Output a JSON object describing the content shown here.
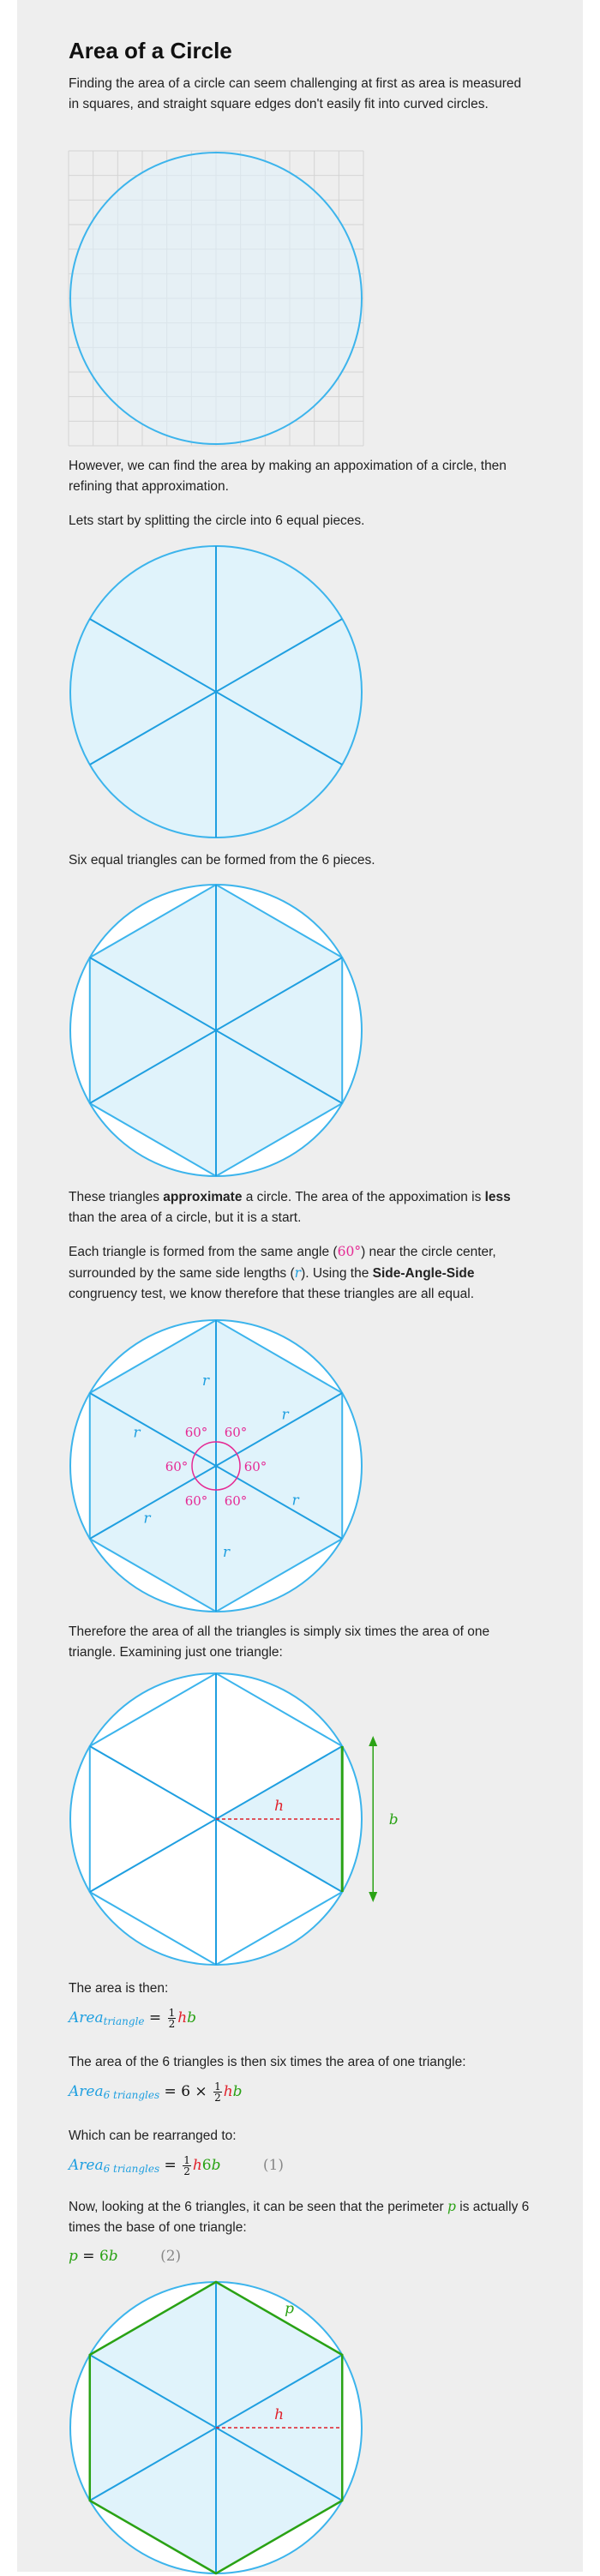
{
  "title": "Area of a Circle",
  "paragraphs": {
    "p1": "Finding the area of a circle can seem challenging at first as area is measured in squares, and straight square edges don't easily fit into curved circles.",
    "p2": "However, we can find the area by making an appoximation of a circle, then refining that approximation.",
    "p3": "Lets start by splitting the circle into 6 equal pieces.",
    "p4": "Six equal triangles can be formed from the 6 pieces.",
    "p5_a": "These triangles ",
    "p5_b": "approximate",
    "p5_c": " a circle. The area of the appoximation is ",
    "p5_d": "less",
    "p5_e": " than the area of a circle, but it is a start.",
    "p6_a": "Each triangle is formed from the same angle (",
    "p6_angle": "60°",
    "p6_b": ") near the circle center, surrounded by the same side lengths (",
    "p6_r": "r",
    "p6_c": "). Using the ",
    "p6_d": "Side-Angle-Side",
    "p6_e": " congruency test, we know therefore that these triangles are all equal.",
    "p7": "Therefore the area of all the triangles is simply six times the area of one triangle. Examining just one triangle:",
    "p8": "The area is then:",
    "p9": "The area of the 6 triangles is then six times the area of one triangle:",
    "p10": "Which can be rearranged to:",
    "p11_a": "Now, looking at the 6 triangles, it can be seen that the perimeter ",
    "p11_p": "p",
    "p11_b": " is actually 6 times the base of one triangle:"
  },
  "equations": {
    "eq1": {
      "area": "Area",
      "sub": "triangle",
      "eq": "=",
      "num": "1",
      "den": "2",
      "h": "h",
      "b": "b"
    },
    "eq2": {
      "area": "Area",
      "sub": "6 triangles",
      "eq": "=",
      "six": "6",
      "times": "×",
      "num": "1",
      "den": "2",
      "h": "h",
      "b": "b"
    },
    "eq3": {
      "area": "Area",
      "sub": "6 triangles",
      "eq": "=",
      "num": "1",
      "den": "2",
      "h": "h",
      "six": "6",
      "b": "b",
      "label": "(1)"
    },
    "eq4": {
      "p": "p",
      "eq": "=",
      "six": "6",
      "b": "b",
      "label": "(2)"
    }
  },
  "figure_labels": {
    "angle": "60°",
    "radius": "r",
    "height": "h",
    "base": "b",
    "perimeter": "p"
  },
  "colors": {
    "circle_stroke": "#3cb4ec",
    "circle_fill": "#e0f3fb",
    "line_blue": "#1f9fe0",
    "angle_pink": "#e52a94",
    "height_red": "#e0202a",
    "base_green": "#2aa215",
    "grid": "#d4d4d4",
    "page_bg": "#eeeeee"
  }
}
